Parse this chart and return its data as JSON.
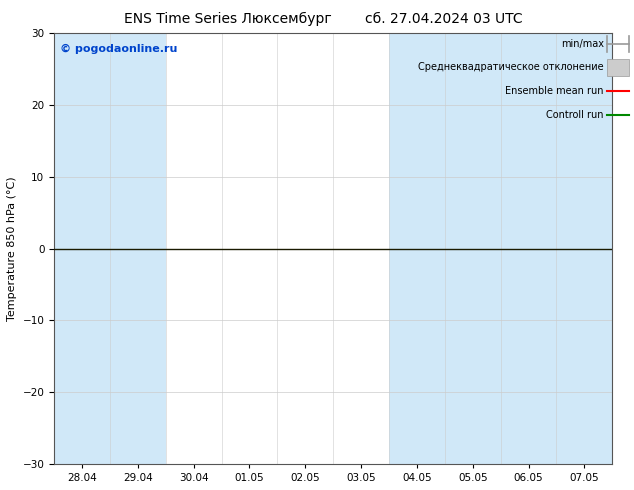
{
  "title_left": "ENS Time Series Люксембург",
  "title_right": "сб. 27.04.2024 03 UTC",
  "ylabel": "Temperature 850 hPa (°C)",
  "ylim": [
    -30,
    30
  ],
  "yticks": [
    -30,
    -20,
    -10,
    0,
    10,
    20,
    30
  ],
  "x_labels": [
    "28.04",
    "29.04",
    "30.04",
    "01.05",
    "02.05",
    "03.05",
    "04.05",
    "05.05",
    "06.05",
    "07.05"
  ],
  "n_xticks": 10,
  "bg_color": "#ffffff",
  "plot_bg_color": "#ffffff",
  "blue_stripe_indices": [
    0,
    1,
    6,
    7,
    8,
    9
  ],
  "stripe_color": "#d0e8f8",
  "zero_line_color": "#1a1a00",
  "legend_labels": [
    "min/max",
    "Среднеквадратическое отклонение",
    "Ensemble mean run",
    "Controll run"
  ],
  "legend_line_colors": [
    "#999999",
    "#cccccc",
    "#ff0000",
    "#008800"
  ],
  "watermark": "© pogodaonline.ru",
  "watermark_color": "#0044cc",
  "title_fontsize": 10,
  "axis_fontsize": 8,
  "tick_fontsize": 7.5,
  "legend_fontsize": 7
}
